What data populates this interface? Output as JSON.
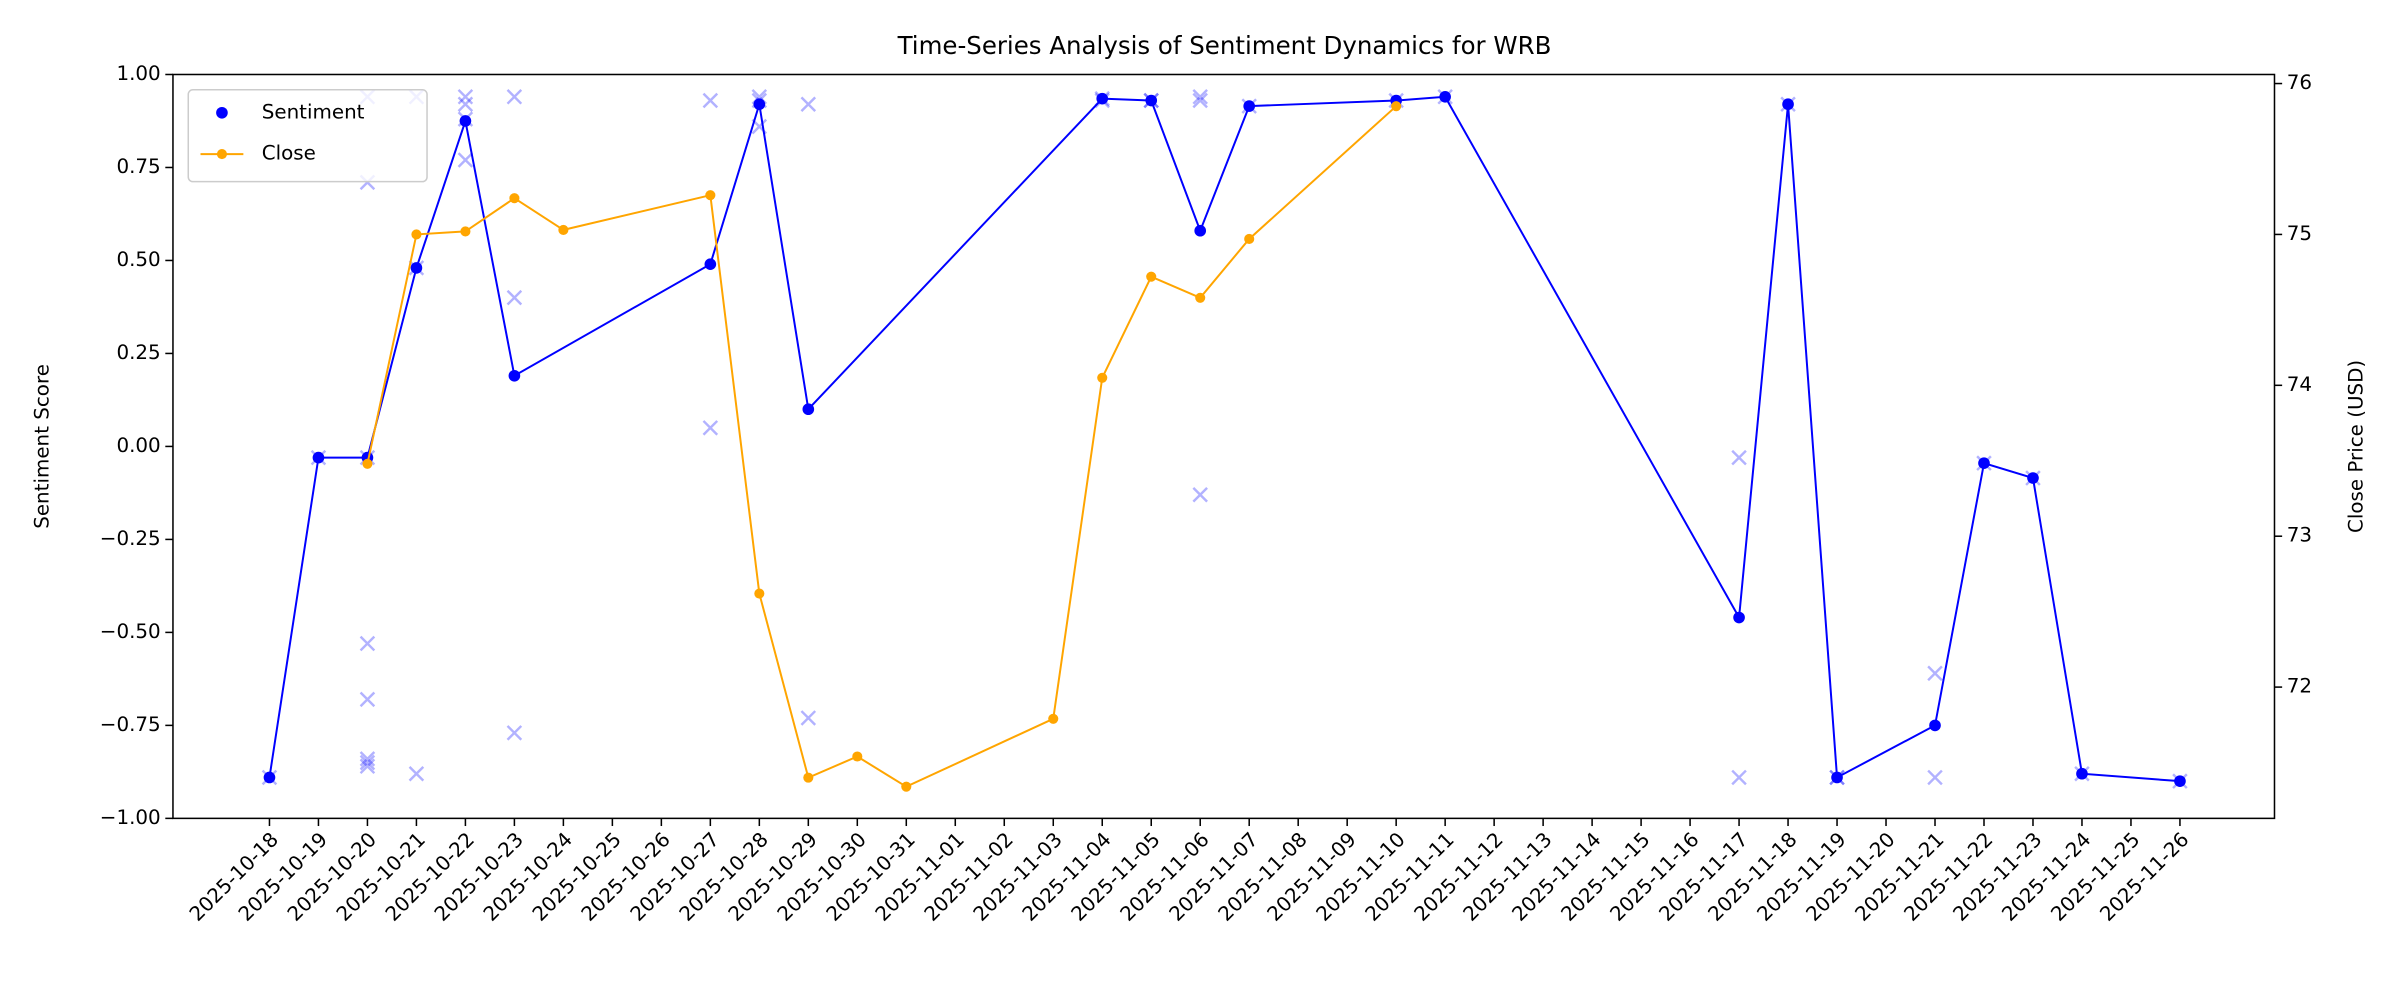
{
  "chart_data": {
    "type": "line",
    "title": "Time-Series Analysis of Sentiment Dynamics for WRB",
    "y_label": "Sentiment Score",
    "y2_label": "Close Price (USD)",
    "xticks": [
      "2025-10-18",
      "2025-10-19",
      "2025-10-20",
      "2025-10-21",
      "2025-10-22",
      "2025-10-23",
      "2025-10-24",
      "2025-10-25",
      "2025-10-26",
      "2025-10-27",
      "2025-10-28",
      "2025-10-29",
      "2025-10-30",
      "2025-10-31",
      "2025-11-01",
      "2025-11-02",
      "2025-11-03",
      "2025-11-04",
      "2025-11-05",
      "2025-11-06",
      "2025-11-07",
      "2025-11-08",
      "2025-11-09",
      "2025-11-10",
      "2025-11-11",
      "2025-11-12",
      "2025-11-13",
      "2025-11-14",
      "2025-11-15",
      "2025-11-16",
      "2025-11-17",
      "2025-11-18",
      "2025-11-19",
      "2025-11-20",
      "2025-11-21",
      "2025-11-22",
      "2025-11-23",
      "2025-11-24",
      "2025-11-25",
      "2025-11-26"
    ],
    "ylim": [
      -1,
      1
    ],
    "yticks": [
      {
        "value": -1,
        "label": "−1.00"
      },
      {
        "value": -0.75,
        "label": "−0.75"
      },
      {
        "value": -0.5,
        "label": "−0.50"
      },
      {
        "value": -0.25,
        "label": "−0.25"
      },
      {
        "value": 0,
        "label": "0.00"
      },
      {
        "value": 0.25,
        "label": "0.25"
      },
      {
        "value": 0.5,
        "label": "0.50"
      },
      {
        "value": 0.75,
        "label": "0.75"
      },
      {
        "value": 1,
        "label": "1.00"
      }
    ],
    "y2lim": [
      71.13,
      76.06
    ],
    "y2ticks": [
      72,
      73,
      74,
      75,
      76
    ],
    "legend": "upper left",
    "series": [
      {
        "name": "Sentiment",
        "color": "#0000ff",
        "x": [
          "2025-10-18",
          "2025-10-19",
          "2025-10-20",
          "2025-10-21",
          "2025-10-22",
          "2025-10-23",
          "2025-10-27",
          "2025-10-28",
          "2025-10-29",
          "2025-11-04",
          "2025-11-05",
          "2025-11-06",
          "2025-11-07",
          "2025-11-10",
          "2025-11-11",
          "2025-11-17",
          "2025-11-18",
          "2025-11-19",
          "2025-11-21",
          "2025-11-22",
          "2025-11-23",
          "2025-11-24",
          "2025-11-26"
        ],
        "values": [
          -0.89,
          -0.03,
          -0.03,
          0.48,
          0.875,
          0.19,
          0.49,
          0.92,
          0.1,
          0.935,
          0.93,
          0.58,
          0.915,
          0.93,
          0.94,
          -0.46,
          0.92,
          -0.89,
          -0.75,
          -0.045,
          -0.085,
          -0.88,
          -0.9
        ]
      },
      {
        "name": "Close",
        "color": "#ffa500",
        "axis": "y2",
        "x": [
          "2025-10-20",
          "2025-10-21",
          "2025-10-22",
          "2025-10-23",
          "2025-10-24",
          "2025-10-27",
          "2025-10-28",
          "2025-10-29",
          "2025-10-30",
          "2025-10-31",
          "2025-11-03",
          "2025-11-04",
          "2025-11-05",
          "2025-11-06",
          "2025-11-07",
          "2025-11-10"
        ],
        "values": [
          73.48,
          75.0,
          75.02,
          75.24,
          75.03,
          75.26,
          72.62,
          71.4,
          71.54,
          71.34,
          71.79,
          74.05,
          74.72,
          74.58,
          74.97,
          75.85
        ]
      }
    ],
    "points": {
      "color": "#0000ff",
      "x": [
        "2025-10-18",
        "2025-10-19",
        "2025-10-20",
        "2025-10-20",
        "2025-10-20",
        "2025-10-20",
        "2025-10-20",
        "2025-10-20",
        "2025-10-20",
        "2025-10-20",
        "2025-10-21",
        "2025-10-21",
        "2025-10-21",
        "2025-10-22",
        "2025-10-22",
        "2025-10-22",
        "2025-10-22",
        "2025-10-23",
        "2025-10-23",
        "2025-10-23",
        "2025-10-27",
        "2025-10-27",
        "2025-10-28",
        "2025-10-28",
        "2025-10-28",
        "2025-10-29",
        "2025-10-29",
        "2025-11-04",
        "2025-11-04",
        "2025-11-05",
        "2025-11-05",
        "2025-11-06",
        "2025-11-06",
        "2025-11-06",
        "2025-11-07",
        "2025-11-10",
        "2025-11-11",
        "2025-11-17",
        "2025-11-17",
        "2025-11-18",
        "2025-11-19",
        "2025-11-19",
        "2025-11-21",
        "2025-11-21",
        "2025-11-22",
        "2025-11-23",
        "2025-11-24",
        "2025-11-26"
      ],
      "values": [
        -0.89,
        -0.03,
        0.94,
        0.71,
        -0.53,
        -0.68,
        -0.84,
        -0.85,
        -0.86,
        -0.03,
        0.94,
        -0.88,
        0.48,
        0.94,
        0.92,
        0.77,
        0.88,
        0.94,
        0.4,
        -0.77,
        0.93,
        0.05,
        0.94,
        0.93,
        0.86,
        0.92,
        -0.73,
        0.935,
        0.93,
        0.93,
        0.93,
        0.94,
        0.93,
        -0.13,
        0.915,
        0.93,
        0.94,
        -0.03,
        -0.89,
        0.92,
        -0.89,
        -0.89,
        -0.61,
        -0.89,
        -0.045,
        -0.085,
        -0.88,
        -0.9
      ]
    }
  }
}
